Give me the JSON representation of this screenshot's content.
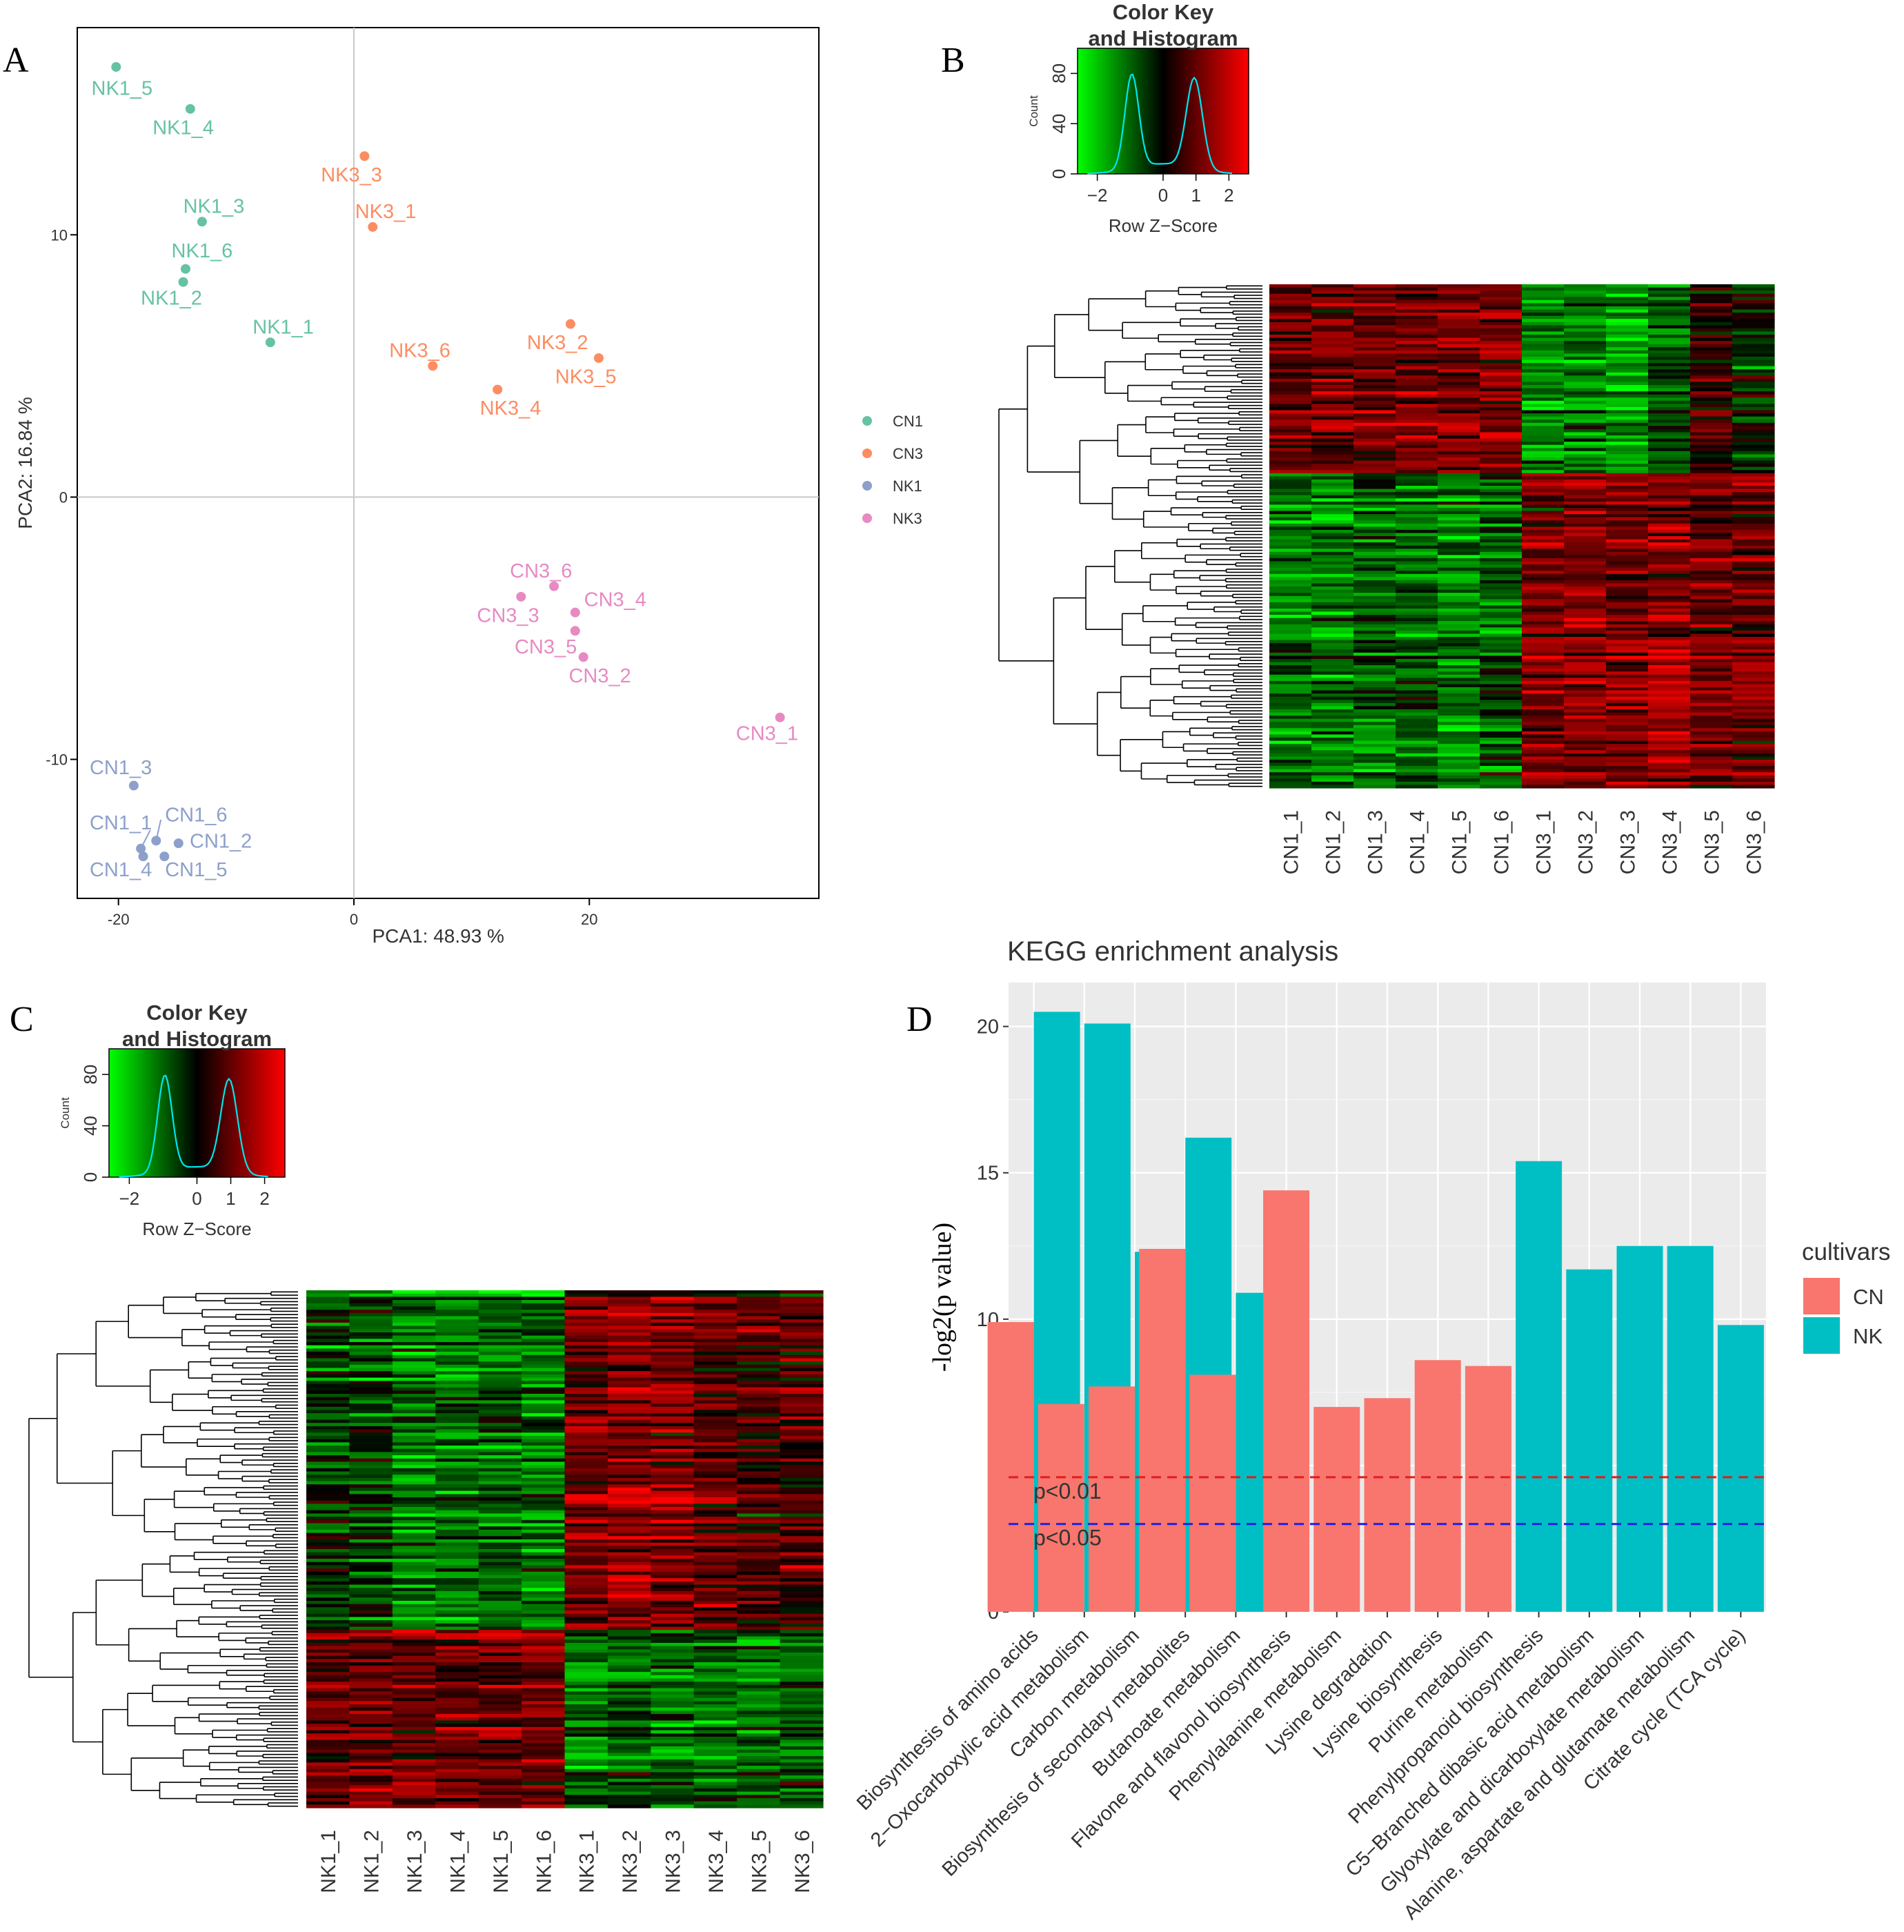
{
  "panels": {
    "a": "A",
    "b": "B",
    "c": "C",
    "d": "D"
  },
  "chart_data": [
    {
      "type": "scatter",
      "panel": "A",
      "xlabel": "PCA1:  48.93 %",
      "ylabel": "PCA2:  16.84 %",
      "xlim": [
        -23.5,
        39.5
      ],
      "ylim": [
        -15.3,
        17.9
      ],
      "xticks": [
        -20,
        0,
        20
      ],
      "yticks": [
        -10,
        0,
        10
      ],
      "legend": [
        {
          "name": "CN1",
          "color": "#66C2A5"
        },
        {
          "name": "CN3",
          "color": "#FC8D62"
        },
        {
          "name": "NK1",
          "color": "#8DA0CB"
        },
        {
          "name": "NK3",
          "color": "#E78AC3"
        }
      ],
      "points": [
        {
          "label": "NK1_5",
          "x": -20.2,
          "y": 16.4,
          "group": "CN1",
          "lx": -19.7,
          "ly": 15.6
        },
        {
          "label": "NK1_4",
          "x": -13.9,
          "y": 14.8,
          "group": "CN1",
          "lx": -14.5,
          "ly": 14.1
        },
        {
          "label": "NK1_3",
          "x": -12.9,
          "y": 10.5,
          "group": "CN1",
          "lx": -11.9,
          "ly": 11.1
        },
        {
          "label": "NK1_6",
          "x": -14.3,
          "y": 8.7,
          "group": "CN1",
          "lx": -12.9,
          "ly": 9.4
        },
        {
          "label": "NK1_2",
          "x": -14.5,
          "y": 8.2,
          "group": "CN1",
          "lx": -15.5,
          "ly": 7.6
        },
        {
          "label": "NK1_1",
          "x": -7.1,
          "y": 5.9,
          "group": "CN1",
          "lx": -6.0,
          "ly": 6.5
        },
        {
          "label": "NK3_3",
          "x": 0.9,
          "y": 13.0,
          "group": "CN3",
          "lx": -0.2,
          "ly": 12.3
        },
        {
          "label": "NK3_1",
          "x": 1.6,
          "y": 10.3,
          "group": "CN3",
          "lx": 2.7,
          "ly": 10.9
        },
        {
          "label": "NK3_6",
          "x": 6.7,
          "y": 5.0,
          "group": "CN3",
          "lx": 5.6,
          "ly": 5.6
        },
        {
          "label": "NK3_2",
          "x": 18.4,
          "y": 6.6,
          "group": "CN3",
          "lx": 17.3,
          "ly": 5.9
        },
        {
          "label": "NK3_5",
          "x": 20.8,
          "y": 5.3,
          "group": "CN3",
          "lx": 19.7,
          "ly": 4.6
        },
        {
          "label": "NK3_4",
          "x": 12.2,
          "y": 4.1,
          "group": "CN3",
          "lx": 13.3,
          "ly": 3.4
        },
        {
          "label": "CN3_6",
          "x": 17.0,
          "y": -3.4,
          "group": "NK3",
          "lx": 15.9,
          "ly": -2.8
        },
        {
          "label": "CN3_3",
          "x": 14.2,
          "y": -3.8,
          "group": "NK3",
          "lx": 13.1,
          "ly": -4.5
        },
        {
          "label": "CN3_4",
          "x": 18.8,
          "y": -4.4,
          "group": "NK3",
          "lx": 22.2,
          "ly": -3.9
        },
        {
          "label": "CN3_5",
          "x": 18.8,
          "y": -5.1,
          "group": "NK3",
          "lx": 16.3,
          "ly": -5.7
        },
        {
          "label": "CN3_2",
          "x": 19.5,
          "y": -6.1,
          "group": "NK3",
          "lx": 20.9,
          "ly": -6.8
        },
        {
          "label": "CN3_1",
          "x": 36.2,
          "y": -8.4,
          "group": "NK3",
          "lx": 35.1,
          "ly": -9.0
        },
        {
          "label": "CN1_3",
          "x": -18.7,
          "y": -11.0,
          "group": "NK1",
          "lx": -19.8,
          "ly": -10.3
        },
        {
          "label": "CN1_6",
          "x": -16.8,
          "y": -13.1,
          "group": "NK1",
          "lx": -13.4,
          "ly": -12.1
        },
        {
          "label": "CN1_1",
          "x": -18.1,
          "y": -13.4,
          "group": "NK1",
          "lx": -19.8,
          "ly": -12.4
        },
        {
          "label": "CN1_2",
          "x": -14.9,
          "y": -13.2,
          "group": "NK1",
          "lx": -11.3,
          "ly": -13.1
        },
        {
          "label": "CN1_4",
          "x": -17.9,
          "y": -13.7,
          "group": "NK1",
          "lx": -19.8,
          "ly": -14.2
        },
        {
          "label": "CN1_5",
          "x": -16.1,
          "y": -13.7,
          "group": "NK1",
          "lx": -13.4,
          "ly": -14.2
        }
      ]
    },
    {
      "type": "heatmap",
      "panel": "B",
      "color_key_title": [
        "Color Key",
        "and Histogram"
      ],
      "key_xlabel": "Row Z−Score",
      "key_ylabel": "Count",
      "key_xticks": [
        "−2",
        "0",
        "1",
        "2"
      ],
      "key_yticks": [
        "0",
        "40",
        "80"
      ],
      "columns": [
        "CN1_1",
        "CN1_2",
        "CN1_3",
        "CN1_4",
        "CN1_5",
        "CN1_6",
        "CN3_1",
        "CN3_2",
        "CN3_3",
        "CN3_4",
        "CN3_5",
        "CN3_6"
      ],
      "blocks": [
        {
          "rows": 60,
          "values": [
            0.8,
            0.8,
            0.8,
            0.9,
            1.1,
            1.0,
            -1.3,
            -1.1,
            -1.4,
            -0.7,
            0.4,
            -0.2
          ]
        },
        {
          "rows": 100,
          "values": [
            -1.0,
            -1.0,
            -0.8,
            -0.8,
            -1.0,
            -0.8,
            1.0,
            1.1,
            1.0,
            1.3,
            0.9,
            0.9
          ]
        }
      ]
    },
    {
      "type": "heatmap",
      "panel": "C",
      "color_key_title": [
        "Color Key",
        "and Histogram"
      ],
      "key_xlabel": "Row Z−Score",
      "key_ylabel": "Count",
      "key_xticks": [
        "−2",
        "0",
        "1",
        "2"
      ],
      "key_yticks": [
        "0",
        "40",
        "80"
      ],
      "columns": [
        "NK1_1",
        "NK1_2",
        "NK1_3",
        "NK1_4",
        "NK1_5",
        "NK1_6",
        "NK3_1",
        "NK3_2",
        "NK3_3",
        "NK3_4",
        "NK3_5",
        "NK3_6"
      ],
      "blocks": [
        {
          "rows": 105,
          "values": [
            -0.5,
            -0.6,
            -1.1,
            -1.1,
            -0.9,
            -1.0,
            1.0,
            1.1,
            1.1,
            0.8,
            0.5,
            0.6
          ]
        },
        {
          "rows": 55,
          "values": [
            0.8,
            0.9,
            0.8,
            0.9,
            0.8,
            0.9,
            -1.0,
            -0.9,
            -1.0,
            -0.9,
            -1.0,
            -0.8
          ]
        }
      ]
    },
    {
      "type": "bar",
      "panel": "D",
      "title": "KEGG enrichment analysis",
      "ylabel": "-log2(p value)",
      "ylim": [
        0,
        21.5
      ],
      "yticks": [
        0,
        5,
        10,
        15,
        20
      ],
      "legend_title": "cultivars",
      "series": [
        {
          "name": "CN",
          "color": "#F8766D",
          "values": [
            9.9,
            7.1,
            7.7,
            12.4,
            8.1,
            14.4,
            7.0,
            7.3,
            8.6,
            8.4,
            null,
            null,
            null,
            null,
            null
          ]
        },
        {
          "name": "NK",
          "color": "#00BFC4",
          "values": [
            20.5,
            20.1,
            12.3,
            16.2,
            10.9,
            null,
            null,
            null,
            null,
            null,
            15.4,
            11.7,
            12.5,
            12.5,
            9.8
          ]
        }
      ],
      "categories": [
        "Biosynthesis of amino acids",
        "2−Oxocarboxylic acid metabolism",
        "Carbon metabolism",
        "Biosynthesis of secondary metabolites",
        "Butanoate metabolism",
        "Flavone and flavonol biosynthesis",
        "Phenylalanine metabolism",
        "Lysine degradation",
        "Lysine biosynthesis",
        "Purine metabolism",
        "Phenylpropanoid biosynthesis",
        "C5−Branched dibasic acid metabolism",
        "Glyoxylate and dicarboxylate metabolism",
        "Alanine, aspartate and glutamate metabolism",
        "Citrate cycle (TCA cycle)"
      ],
      "hlines": [
        {
          "label": "p<0.01",
          "value": 4.6,
          "color": "#E41A1C"
        },
        {
          "label": "p<0.05",
          "value": 3.0,
          "color": "#1F1FE0"
        }
      ]
    }
  ]
}
